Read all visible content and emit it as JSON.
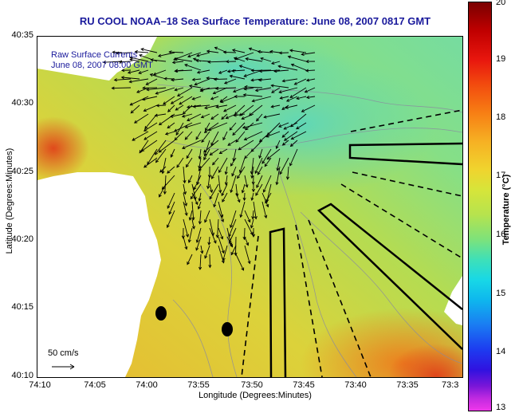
{
  "title": "RU COOL   NOAA–18  Sea Surface Temperature:  June 08, 2007 0817 GMT",
  "legend": {
    "vector_title": "Raw Surface Currents",
    "vector_date": "June 08, 2007 08:00 GMT",
    "scale_label": "50 cm/s"
  },
  "axes": {
    "xlabel": "Longitude (Degrees:Minutes)",
    "ylabel": "Latitude (Degrees:Minutes)",
    "xticks": [
      "74:10",
      "74:05",
      "74:00",
      "73:55",
      "73:50",
      "73:45",
      "73:40",
      "73:35",
      "73:3"
    ],
    "yticks": [
      "40:35",
      "40:30",
      "40:25",
      "40:20",
      "40:15",
      "40:10"
    ]
  },
  "colorbar": {
    "label": "Temperature (°C)",
    "ticks": [
      "20",
      "19",
      "18",
      "17",
      "16",
      "15",
      "14",
      "13"
    ],
    "range": [
      13,
      20
    ]
  },
  "colors": {
    "title": "#1a1a9c",
    "water_warm": "#f0c42a",
    "water_cool": "#7fe0a0",
    "land": "#ffffff"
  },
  "map_features": {
    "stations": [
      "station-1",
      "station-2"
    ],
    "shipping_lanes": [
      "lane-east",
      "lane-southeast",
      "lane-south"
    ]
  }
}
